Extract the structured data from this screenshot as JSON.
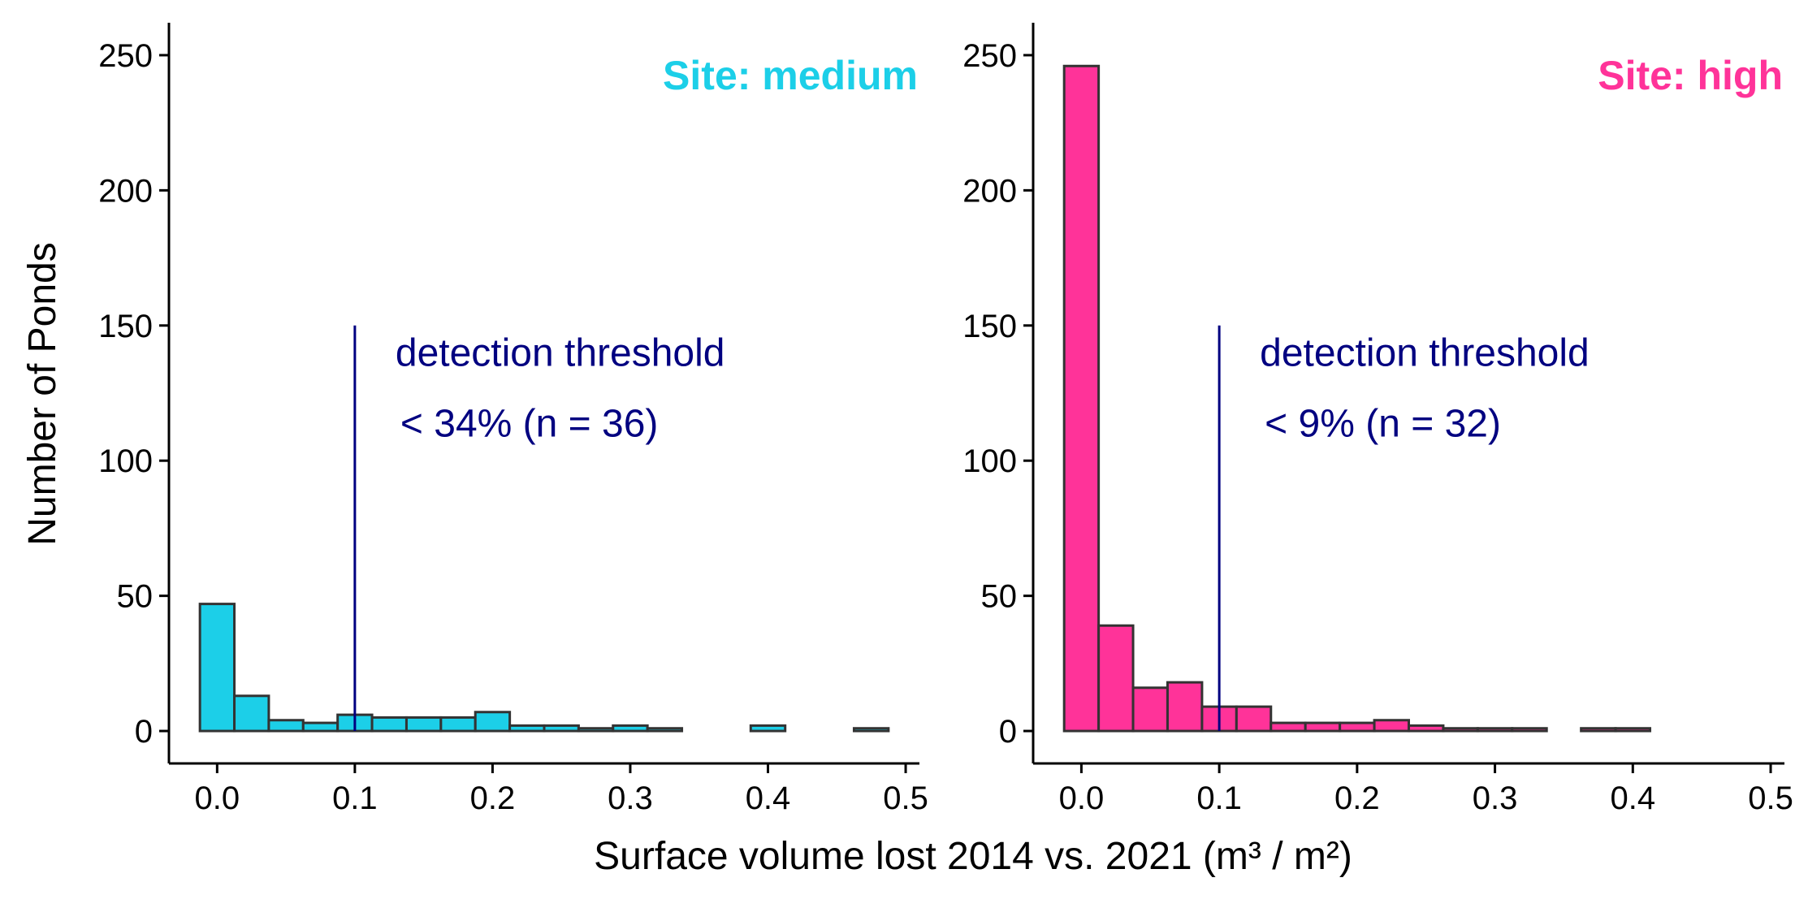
{
  "shared": {
    "ylabel": "Number of Ponds",
    "xlabel": "Surface volume lost 2014 vs. 2021 (m³ / m²)",
    "threshold_label": "detection threshold"
  },
  "chart_data": [
    {
      "type": "bar",
      "panel_label": "Site: medium",
      "color": "#1ccfe8",
      "edge_color": "#333333",
      "threshold_line_color": "#000080",
      "annotation_color": "#000080",
      "threshold_x": 0.1,
      "threshold_line_top": 150,
      "annotation_line1": "detection threshold",
      "annotation_line2": "< 34% (n = 36)",
      "bin_width": 0.025,
      "bin_centers": [
        0.0,
        0.025,
        0.05,
        0.075,
        0.1,
        0.125,
        0.15,
        0.175,
        0.2,
        0.225,
        0.25,
        0.275,
        0.3,
        0.325,
        0.35,
        0.375,
        0.4,
        0.425,
        0.45,
        0.475
      ],
      "values": [
        47,
        13,
        4,
        3,
        6,
        5,
        5,
        5,
        7,
        2,
        2,
        1,
        2,
        1,
        0,
        0,
        2,
        0,
        0,
        1
      ],
      "xlim": [
        -0.035,
        0.51
      ],
      "ylim": [
        -12,
        262
      ],
      "xticks": [
        0.0,
        0.1,
        0.2,
        0.3,
        0.4,
        0.5
      ],
      "xtick_labels": [
        "0.0",
        "0.1",
        "0.2",
        "0.3",
        "0.4",
        "0.5"
      ],
      "yticks": [
        0,
        50,
        100,
        150,
        200,
        250
      ],
      "ytick_labels": [
        "0",
        "50",
        "100",
        "150",
        "200",
        "250"
      ],
      "grid": false
    },
    {
      "type": "bar",
      "panel_label": "Site: high",
      "color": "#ff3399",
      "edge_color": "#333333",
      "threshold_line_color": "#000080",
      "annotation_color": "#000080",
      "threshold_x": 0.1,
      "threshold_line_top": 150,
      "annotation_line1": "detection threshold",
      "annotation_line2": "< 9% (n = 32)",
      "bin_width": 0.025,
      "bin_centers": [
        0.0,
        0.025,
        0.05,
        0.075,
        0.1,
        0.125,
        0.15,
        0.175,
        0.2,
        0.225,
        0.25,
        0.275,
        0.3,
        0.325,
        0.35,
        0.375,
        0.4,
        0.425,
        0.45,
        0.475
      ],
      "values": [
        246,
        39,
        16,
        18,
        9,
        9,
        3,
        3,
        3,
        4,
        2,
        1,
        1,
        1,
        0,
        1,
        1,
        0,
        0,
        0
      ],
      "xlim": [
        -0.035,
        0.51
      ],
      "ylim": [
        -12,
        262
      ],
      "xticks": [
        0.0,
        0.1,
        0.2,
        0.3,
        0.4,
        0.5
      ],
      "xtick_labels": [
        "0.0",
        "0.1",
        "0.2",
        "0.3",
        "0.4",
        "0.5"
      ],
      "yticks": [
        0,
        50,
        100,
        150,
        200,
        250
      ],
      "ytick_labels": [
        "0",
        "50",
        "100",
        "150",
        "200",
        "250"
      ],
      "grid": false
    }
  ]
}
